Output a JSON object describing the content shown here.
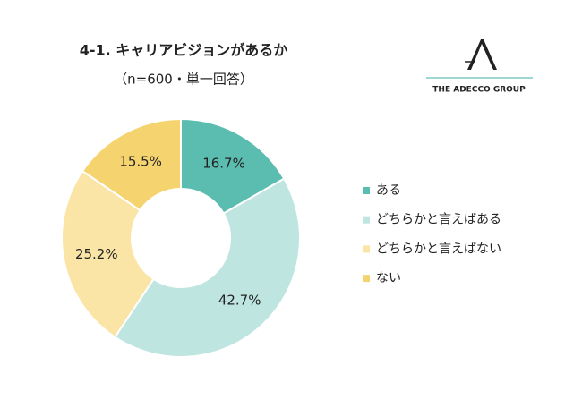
{
  "chart_data": {
    "type": "donut",
    "title": "4-1. キャリアビジョンがあるか",
    "subtitle": "（n=600・単一回答）",
    "categories": [
      "ある",
      "どちらかと言えばある",
      "どちらかと言えばない",
      "ない"
    ],
    "values": [
      16.7,
      42.7,
      25.2,
      15.5
    ],
    "value_labels": [
      "16.7%",
      "42.7%",
      "25.2%",
      "15.5%"
    ],
    "colors": [
      "#5bbcb0",
      "#bfe5e1",
      "#fae4a6",
      "#f5d470"
    ],
    "legend": "right"
  },
  "logo": {
    "text": "THE ADECCO GROUP"
  }
}
